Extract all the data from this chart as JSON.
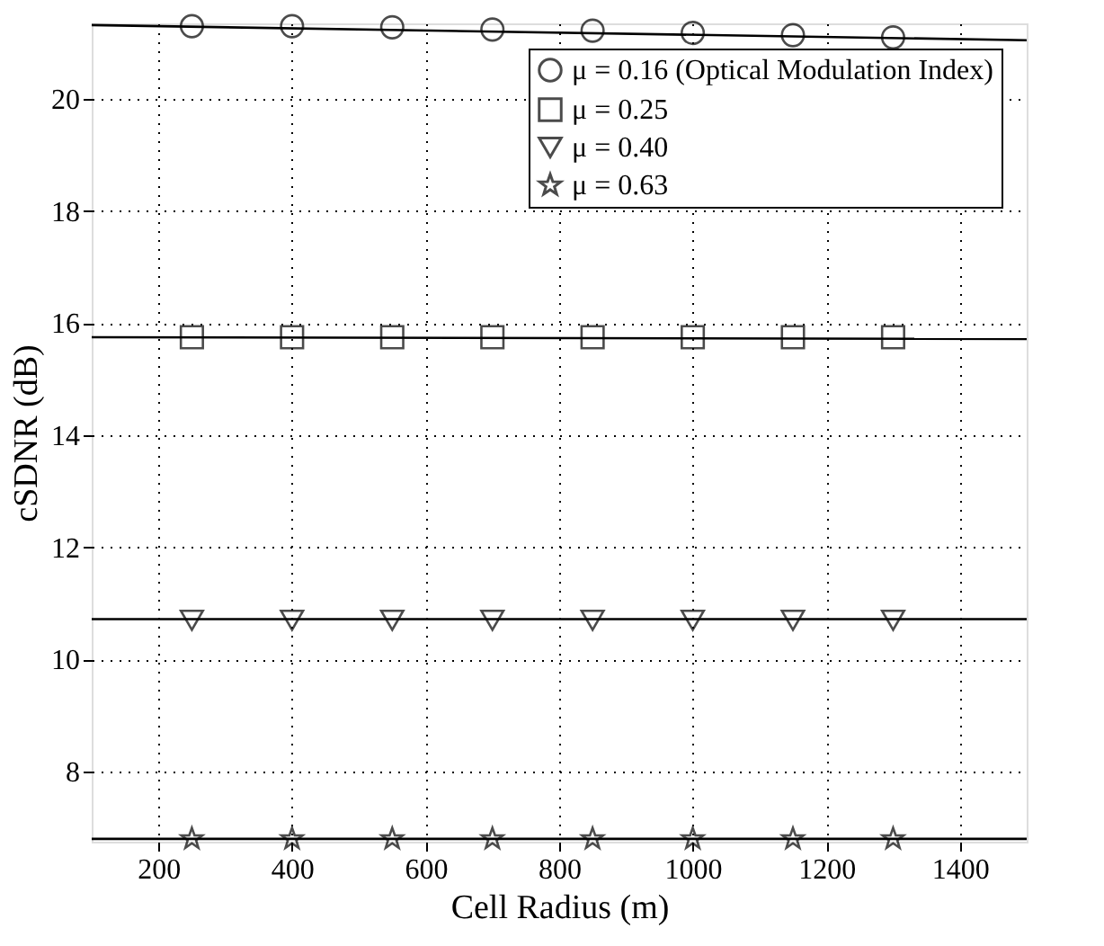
{
  "chart_data": {
    "type": "scatter",
    "xlabel": "Cell Radius (m)",
    "ylabel": "cSDNR (dB)",
    "xlim": [
      100,
      1500
    ],
    "xticks": [
      200,
      400,
      600,
      800,
      1000,
      1200,
      1400
    ],
    "ylim": [
      6.75,
      21.35
    ],
    "yticks": [
      8,
      10,
      12,
      14,
      16,
      18,
      20
    ],
    "grid": true,
    "legend": "top right",
    "line_style": "solid",
    "series": [
      {
        "name": "μ = 0.16 (Optical Modulation Index)",
        "color": "#000000",
        "marker": "circle",
        "x": [
          250,
          400,
          550,
          700,
          850,
          1000,
          1150,
          1300
        ],
        "values": [
          21.3,
          21.3,
          21.28,
          21.24,
          21.22,
          21.18,
          21.14,
          21.1
        ]
      },
      {
        "name": "μ = 0.25",
        "color": "#000000",
        "marker": "square",
        "x": [
          250,
          400,
          550,
          700,
          850,
          1000,
          1150,
          1300
        ],
        "values": [
          15.75,
          15.75,
          15.75,
          15.75,
          15.75,
          15.75,
          15.75,
          15.75
        ]
      },
      {
        "name": "μ = 0.40",
        "color": "#000000",
        "marker": "triangle",
        "x": [
          250,
          400,
          550,
          700,
          850,
          1000,
          1150,
          1300
        ],
        "values": [
          10.7,
          10.7,
          10.7,
          10.7,
          10.7,
          10.7,
          10.7,
          10.7
        ]
      },
      {
        "name": "μ = 0.63",
        "color": "#000000",
        "marker": "star",
        "x": [
          250,
          400,
          550,
          700,
          850,
          1000,
          1150,
          1300
        ],
        "values": [
          6.8,
          6.8,
          6.8,
          6.8,
          6.8,
          6.8,
          6.8,
          6.8
        ]
      },
      {
        "type": "line",
        "color": "#000000",
        "x": [
          100,
          1500
        ],
        "values": [
          21.32,
          21.05
        ]
      },
      {
        "type": "line",
        "color": "#000000",
        "x": [
          100,
          1500
        ],
        "values": [
          15.75,
          15.72
        ]
      },
      {
        "type": "line",
        "color": "#000000",
        "x": [
          100,
          1500
        ],
        "values": [
          10.72,
          10.72
        ]
      },
      {
        "type": "line",
        "color": "#000000",
        "x": [
          100,
          1500
        ],
        "values": [
          6.8,
          6.8
        ]
      }
    ]
  }
}
